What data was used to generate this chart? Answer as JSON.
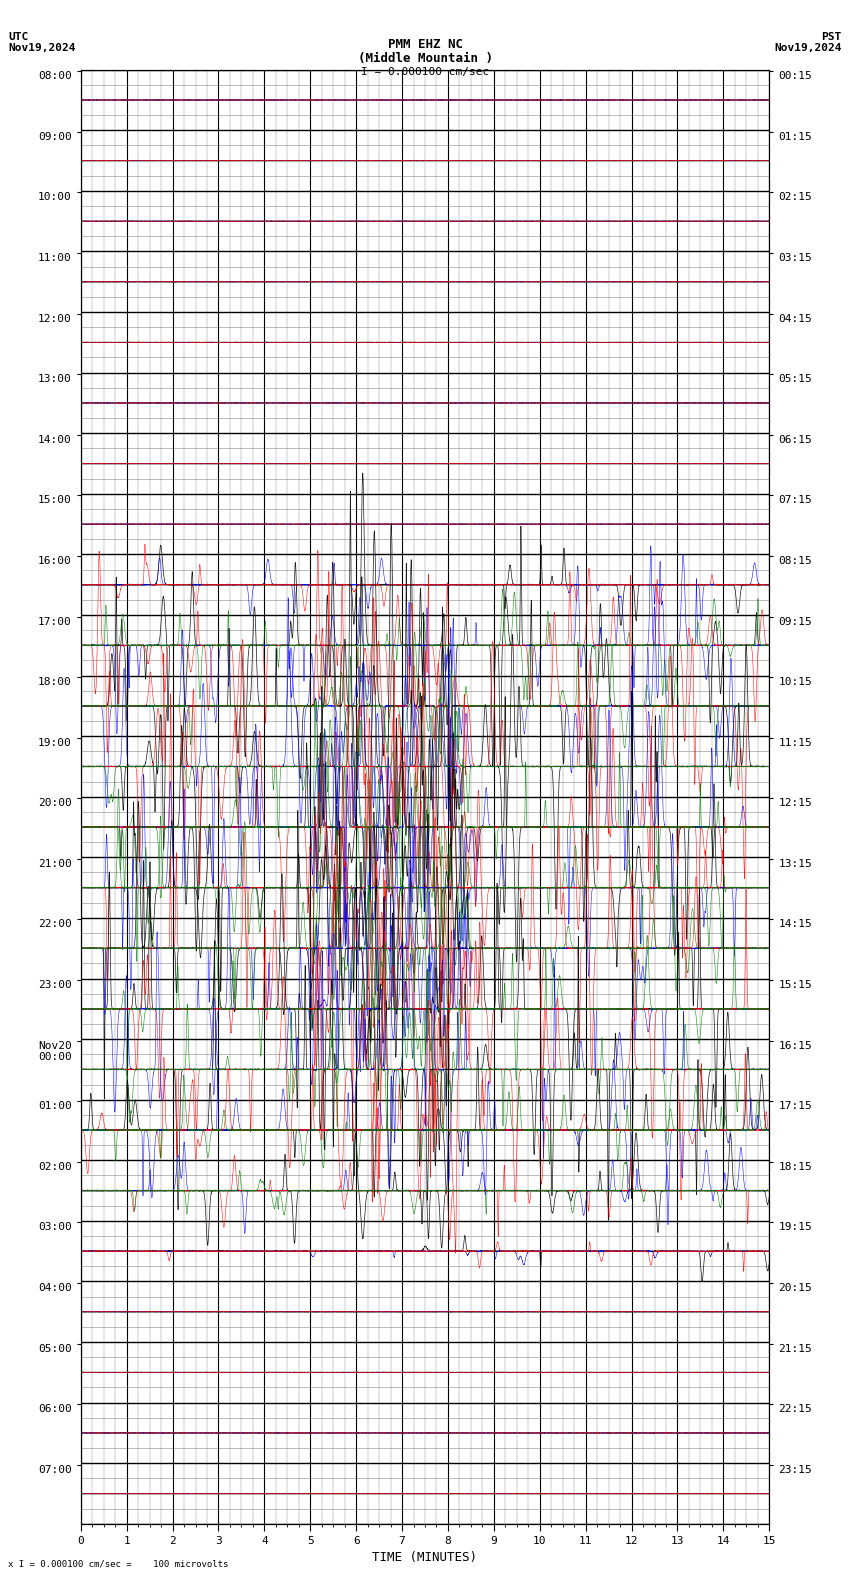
{
  "title_line1": "PMM EHZ NC",
  "title_line2": "(Middle Mountain )",
  "scale_label": "I = 0.000100 cm/sec",
  "utc_label": "UTC\nNov19,2024",
  "pst_label": "PST\nNov19,2024",
  "xlabel": "TIME (MINUTES)",
  "footer_label": "x I = 0.000100 cm/sec =    100 microvolts",
  "left_times": [
    "08:00",
    "09:00",
    "10:00",
    "11:00",
    "12:00",
    "13:00",
    "14:00",
    "15:00",
    "16:00",
    "17:00",
    "18:00",
    "19:00",
    "20:00",
    "21:00",
    "22:00",
    "23:00",
    "Nov20\n00:00",
    "01:00",
    "02:00",
    "03:00",
    "04:00",
    "05:00",
    "06:00",
    "07:00"
  ],
  "right_times": [
    "00:15",
    "01:15",
    "02:15",
    "03:15",
    "04:15",
    "05:15",
    "06:15",
    "07:15",
    "08:15",
    "09:15",
    "10:15",
    "11:15",
    "12:15",
    "13:15",
    "14:15",
    "15:15",
    "16:15",
    "17:15",
    "18:15",
    "19:15",
    "20:15",
    "21:15",
    "22:15",
    "23:15"
  ],
  "n_rows": 24,
  "n_subrows": 4,
  "x_min": 0,
  "x_max": 15,
  "bg_color": "#ffffff",
  "major_grid_color": "#000000",
  "minor_grid_color": "#888888",
  "trace_colors": [
    "#000000",
    "#0000ff",
    "#ff0000",
    "#008000"
  ],
  "font_size_title": 9,
  "font_size_labels": 8,
  "font_size_ticks": 8
}
